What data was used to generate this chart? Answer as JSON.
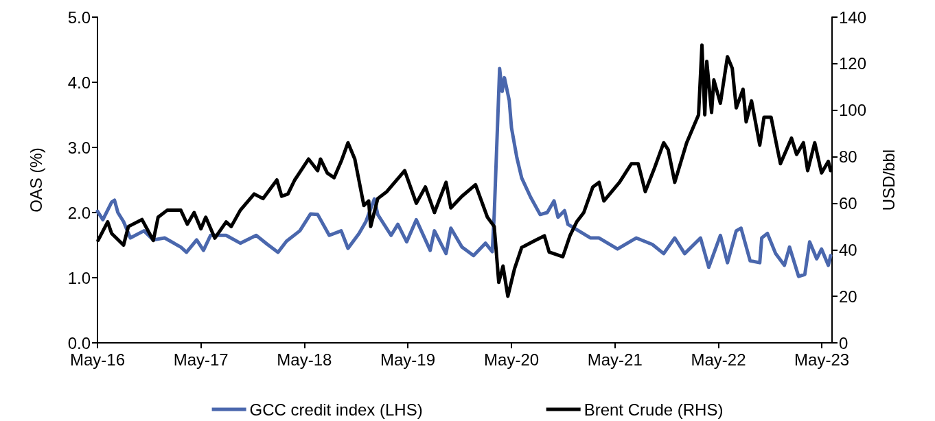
{
  "chart_data": {
    "type": "line",
    "xlim": [
      "2016-05-01",
      "2023-06-06"
    ],
    "xticks": [
      {
        "value": "2016-05-01",
        "label": "May-16"
      },
      {
        "value": "2017-05-01",
        "label": "May-17"
      },
      {
        "value": "2018-05-01",
        "label": "May-18"
      },
      {
        "value": "2019-05-01",
        "label": "May-19"
      },
      {
        "value": "2020-05-01",
        "label": "May-20"
      },
      {
        "value": "2021-05-01",
        "label": "May-21"
      },
      {
        "value": "2022-05-01",
        "label": "May-22"
      },
      {
        "value": "2023-05-01",
        "label": "May-23"
      }
    ],
    "ylabel": "OAS (%)",
    "y2label": "USD/bbl",
    "ylim": [
      0,
      5
    ],
    "yticks": [
      {
        "value": 0,
        "label": "0.0"
      },
      {
        "value": 1,
        "label": "1.0"
      },
      {
        "value": 2,
        "label": "2.0"
      },
      {
        "value": 3,
        "label": "3.0"
      },
      {
        "value": 4,
        "label": "4.0"
      },
      {
        "value": 5,
        "label": "5.0"
      }
    ],
    "y2lim": [
      0,
      140
    ],
    "y2ticks": [
      0,
      20,
      40,
      60,
      80,
      100,
      120,
      140
    ],
    "grid": false,
    "legend": "bottom",
    "marker": "none",
    "line_style": "solid",
    "series": [
      {
        "name": "GCC credit index (LHS)",
        "color": "#4a67ad",
        "x": [
          "2016-05-01",
          "2016-05-20",
          "2016-06-20",
          "2016-06-30",
          "2016-07-12",
          "2016-08-01",
          "2016-08-25",
          "2016-10-12",
          "2016-11-14",
          "2016-12-24",
          "2017-02-19",
          "2017-03-11",
          "2017-04-16",
          "2017-05-10",
          "2017-06-04",
          "2017-07-29",
          "2017-09-17",
          "2017-11-12",
          "2017-12-22",
          "2018-01-28",
          "2018-02-27",
          "2018-04-15",
          "2018-05-23",
          "2018-06-17",
          "2018-07-28",
          "2018-09-08",
          "2018-10-02",
          "2018-11-10",
          "2018-12-04",
          "2019-01-03",
          "2019-01-15",
          "2019-03-03",
          "2019-03-27",
          "2019-04-27",
          "2019-05-31",
          "2019-07-19",
          "2019-08-03",
          "2019-09-13",
          "2019-09-30",
          "2019-11-08",
          "2019-12-19",
          "2020-01-30",
          "2020-02-23",
          "2020-03-01",
          "2020-03-20",
          "2020-03-29",
          "2020-04-06",
          "2020-04-23",
          "2020-05-01",
          "2020-05-20",
          "2020-06-06",
          "2020-07-07",
          "2020-08-10",
          "2020-09-04",
          "2020-09-28",
          "2020-10-12",
          "2020-11-04",
          "2020-11-16",
          "2020-12-24",
          "2021-02-04",
          "2021-03-06",
          "2021-05-10",
          "2021-07-15",
          "2021-09-10",
          "2021-10-20",
          "2021-11-28",
          "2022-01-02",
          "2022-02-27",
          "2022-03-28",
          "2022-05-08",
          "2022-06-02",
          "2022-07-03",
          "2022-07-20",
          "2022-08-21",
          "2022-09-24",
          "2022-10-01",
          "2022-10-21",
          "2022-11-19",
          "2022-12-20",
          "2023-01-07",
          "2023-02-08",
          "2023-03-02",
          "2023-03-19",
          "2023-04-13",
          "2023-04-30",
          "2023-05-24",
          "2023-06-01"
        ],
        "values": [
          2.02,
          1.89,
          2.16,
          2.19,
          2.0,
          1.86,
          1.61,
          1.72,
          1.58,
          1.61,
          1.47,
          1.39,
          1.58,
          1.42,
          1.65,
          1.65,
          1.53,
          1.65,
          1.51,
          1.39,
          1.56,
          1.72,
          1.98,
          1.97,
          1.65,
          1.72,
          1.45,
          1.68,
          1.86,
          2.21,
          1.97,
          1.65,
          1.82,
          1.55,
          1.89,
          1.42,
          1.72,
          1.37,
          1.76,
          1.47,
          1.34,
          1.53,
          1.4,
          1.97,
          4.21,
          3.86,
          4.07,
          3.72,
          3.3,
          2.84,
          2.53,
          2.24,
          1.97,
          2.0,
          2.18,
          1.93,
          2.03,
          1.82,
          1.72,
          1.61,
          1.61,
          1.44,
          1.61,
          1.51,
          1.37,
          1.61,
          1.37,
          1.61,
          1.16,
          1.65,
          1.23,
          1.72,
          1.76,
          1.26,
          1.23,
          1.61,
          1.68,
          1.37,
          1.19,
          1.47,
          1.02,
          1.05,
          1.55,
          1.29,
          1.44,
          1.19,
          1.34
        ]
      },
      {
        "name": "Brent Crude (RHS)",
        "color": "#000000",
        "axis": "y2",
        "x": [
          "2016-05-03",
          "2016-06-06",
          "2016-06-20",
          "2016-08-01",
          "2016-08-18",
          "2016-10-05",
          "2016-11-14",
          "2016-12-01",
          "2017-01-02",
          "2017-02-19",
          "2017-03-14",
          "2017-04-07",
          "2017-05-01",
          "2017-05-18",
          "2017-06-19",
          "2017-07-29",
          "2017-08-16",
          "2017-09-17",
          "2017-11-05",
          "2017-12-06",
          "2018-01-24",
          "2018-02-10",
          "2018-03-04",
          "2018-03-28",
          "2018-05-16",
          "2018-06-17",
          "2018-06-27",
          "2018-07-21",
          "2018-08-14",
          "2018-09-08",
          "2018-10-02",
          "2018-10-26",
          "2018-11-27",
          "2018-12-14",
          "2018-12-21",
          "2019-01-15",
          "2019-02-16",
          "2019-04-20",
          "2019-05-31",
          "2019-07-02",
          "2019-08-03",
          "2019-09-13",
          "2019-09-30",
          "2019-11-08",
          "2019-12-26",
          "2020-02-06",
          "2020-03-01",
          "2020-03-17",
          "2020-04-01",
          "2020-04-18",
          "2020-05-12",
          "2020-06-06",
          "2020-07-23",
          "2020-08-25",
          "2020-09-11",
          "2020-10-29",
          "2020-11-23",
          "2020-12-17",
          "2021-01-11",
          "2021-02-12",
          "2021-03-06",
          "2021-03-23",
          "2021-05-17",
          "2021-06-28",
          "2021-07-22",
          "2021-08-16",
          "2021-09-17",
          "2021-10-20",
          "2021-11-05",
          "2021-11-28",
          "2022-01-09",
          "2022-02-20",
          "2022-03-04",
          "2022-03-14",
          "2022-03-21",
          "2022-04-07",
          "2022-04-15",
          "2022-05-08",
          "2022-06-02",
          "2022-06-19",
          "2022-07-03",
          "2022-07-27",
          "2022-08-07",
          "2022-08-26",
          "2022-09-24",
          "2022-10-09",
          "2022-11-03",
          "2022-11-26",
          "2022-12-06",
          "2023-01-14",
          "2023-02-01",
          "2023-02-25",
          "2023-03-12",
          "2023-04-06",
          "2023-04-30",
          "2023-05-24",
          "2023-06-01"
        ],
        "values": [
          44,
          52,
          47,
          42,
          50,
          53,
          44,
          54,
          57,
          57,
          51,
          56,
          49,
          54,
          45,
          52,
          50,
          57,
          64,
          62,
          70,
          63,
          64,
          70,
          79,
          74,
          79,
          73,
          71,
          78,
          86,
          79,
          59,
          61,
          50,
          62,
          65,
          74,
          60,
          67,
          56,
          69,
          58,
          63,
          68,
          54,
          50,
          26,
          33,
          20,
          32,
          41,
          44,
          46,
          39,
          37,
          46,
          52,
          56,
          67,
          69,
          61,
          69,
          77,
          77,
          65,
          75,
          86,
          83,
          69,
          86,
          98,
          128,
          98,
          121,
          99,
          113,
          103,
          123,
          118,
          101,
          109,
          95,
          104,
          85,
          97,
          97,
          83,
          77,
          88,
          81,
          86,
          74,
          86,
          73,
          78,
          74
        ]
      }
    ]
  }
}
